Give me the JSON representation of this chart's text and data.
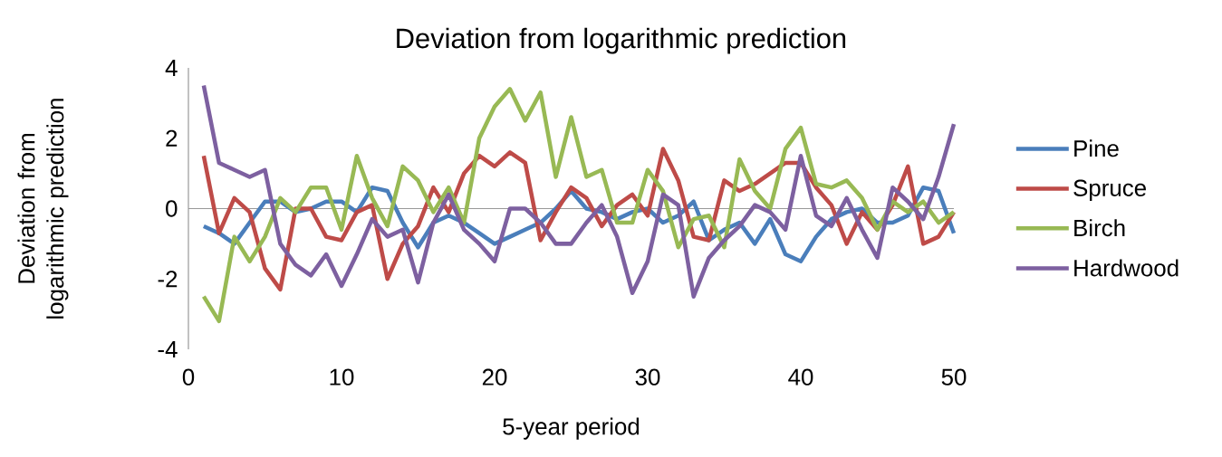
{
  "chart_data": {
    "type": "line",
    "title": "Deviation from logarithmic prediction",
    "xlabel": "5-year period",
    "ylabel": "Deviation from logarithmic prediction",
    "x": [
      1,
      2,
      3,
      4,
      5,
      6,
      7,
      8,
      9,
      10,
      11,
      12,
      13,
      14,
      15,
      16,
      17,
      18,
      19,
      20,
      21,
      22,
      23,
      24,
      25,
      26,
      27,
      28,
      29,
      30,
      31,
      32,
      33,
      34,
      35,
      36,
      37,
      38,
      39,
      40,
      41,
      42,
      43,
      44,
      45,
      46,
      47,
      48,
      49,
      50
    ],
    "xlim": [
      0,
      50
    ],
    "xticks": [
      0,
      10,
      20,
      30,
      40,
      50
    ],
    "ylim": [
      -4,
      4
    ],
    "yticks": [
      -4,
      -2,
      0,
      2,
      4
    ],
    "legend": "right",
    "marker": "none",
    "line_style": "solid",
    "series": [
      {
        "name": "Pine",
        "color": "#4a7ebb",
        "values": [
          -0.5,
          -0.7,
          -1.0,
          -0.4,
          0.2,
          0.2,
          -0.1,
          0.0,
          0.2,
          0.2,
          -0.1,
          0.6,
          0.5,
          -0.4,
          -1.1,
          -0.4,
          -0.2,
          -0.4,
          -0.7,
          -1.0,
          -0.8,
          -0.6,
          -0.4,
          0.0,
          0.5,
          0.0,
          -0.1,
          -0.3,
          -0.1,
          0.0,
          -0.4,
          -0.2,
          0.2,
          -0.9,
          -0.6,
          -0.4,
          -1.0,
          -0.3,
          -1.3,
          -1.5,
          -0.8,
          -0.3,
          -0.1,
          0.0,
          -0.4,
          -0.4,
          -0.2,
          0.6,
          0.5,
          -0.7
        ]
      },
      {
        "name": "Spruce",
        "color": "#be4b48",
        "values": [
          1.5,
          -0.7,
          0.3,
          -0.1,
          -1.7,
          -2.3,
          0.0,
          0.0,
          -0.8,
          -0.9,
          -0.1,
          0.1,
          -2.0,
          -1.0,
          -0.5,
          0.6,
          -0.1,
          1.0,
          1.5,
          1.2,
          1.6,
          1.3,
          -0.9,
          -0.1,
          0.6,
          0.3,
          -0.5,
          0.1,
          0.4,
          -0.2,
          1.7,
          0.8,
          -0.8,
          -0.9,
          0.8,
          0.5,
          0.7,
          1.0,
          1.3,
          1.3,
          0.6,
          0.1,
          -1.0,
          -0.1,
          -0.6,
          0.1,
          1.2,
          -1.0,
          -0.8,
          -0.1
        ]
      },
      {
        "name": "Birch",
        "color": "#98b954",
        "values": [
          -2.5,
          -3.2,
          -0.8,
          -1.5,
          -0.8,
          0.3,
          -0.1,
          0.6,
          0.6,
          -0.6,
          1.5,
          0.3,
          -0.5,
          1.2,
          0.8,
          -0.1,
          0.6,
          -0.4,
          2.0,
          2.9,
          3.4,
          2.5,
          3.3,
          0.9,
          2.6,
          0.9,
          1.1,
          -0.4,
          -0.4,
          1.1,
          0.5,
          -1.1,
          -0.3,
          -0.2,
          -1.1,
          1.4,
          0.5,
          0.0,
          1.7,
          2.3,
          0.7,
          0.6,
          0.8,
          0.3,
          -0.6,
          0.2,
          -0.1,
          0.2,
          -0.4,
          -0.1
        ]
      },
      {
        "name": "Hardwood",
        "color": "#7d60a0",
        "values": [
          3.5,
          1.3,
          1.1,
          0.9,
          1.1,
          -1.0,
          -1.6,
          -1.9,
          -1.3,
          -2.2,
          -1.3,
          -0.3,
          -0.8,
          -0.6,
          -2.1,
          -0.4,
          0.4,
          -0.6,
          -1.0,
          -1.5,
          0.0,
          0.0,
          -0.4,
          -1.0,
          -1.0,
          -0.4,
          0.1,
          -0.8,
          -2.4,
          -1.5,
          0.4,
          0.1,
          -2.5,
          -1.4,
          -0.9,
          -0.5,
          0.1,
          -0.1,
          -0.6,
          1.5,
          -0.2,
          -0.5,
          0.3,
          -0.6,
          -1.4,
          0.6,
          0.2,
          -0.3,
          0.9,
          2.4
        ]
      }
    ]
  }
}
